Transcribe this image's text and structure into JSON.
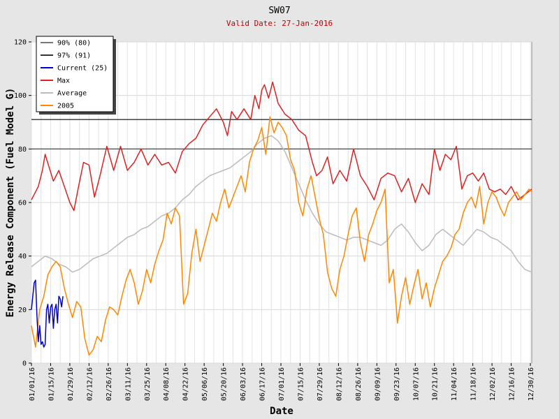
{
  "chart_data": {
    "type": "line",
    "title": "SW07",
    "subtitle": "Valid Date: 27-Jan-2016",
    "xlabel": "Date",
    "ylabel": "Energy Release Component (Fuel Model G)",
    "xlim": [
      0,
      365
    ],
    "ylim": [
      0,
      120
    ],
    "yticks": [
      0,
      20,
      40,
      60,
      80,
      100,
      120
    ],
    "xtick_days": [
      0,
      14,
      28,
      42,
      56,
      70,
      84,
      98,
      112,
      126,
      140,
      154,
      168,
      182,
      196,
      210,
      224,
      238,
      252,
      266,
      280,
      294,
      308,
      322,
      336,
      350,
      364
    ],
    "xtick_labels": [
      "01/01/16",
      "01/15/16",
      "01/29/16",
      "02/12/16",
      "02/26/16",
      "03/11/16",
      "03/25/16",
      "04/08/16",
      "04/22/16",
      "05/06/16",
      "05/20/16",
      "06/03/16",
      "06/17/16",
      "07/01/16",
      "07/15/16",
      "07/29/16",
      "08/12/16",
      "08/26/16",
      "09/09/16",
      "09/23/16",
      "10/07/16",
      "10/21/16",
      "11/04/16",
      "11/18/16",
      "12/02/16",
      "12/16/16",
      "12/30/16"
    ],
    "hlines": [
      {
        "name": "90% (80)",
        "value": 80,
        "color": "#555555"
      },
      {
        "name": "97% (91)",
        "value": 91,
        "color": "#333333"
      }
    ],
    "series": [
      {
        "name": "90% (80)",
        "color": "#777777",
        "kind": "hline",
        "value": 80
      },
      {
        "name": "97% (91)",
        "color": "#333333",
        "kind": "hline",
        "value": 91
      },
      {
        "name": "Current (25)",
        "color": "#0000cc",
        "points": [
          [
            0,
            20
          ],
          [
            2,
            30
          ],
          [
            3,
            31
          ],
          [
            4,
            18
          ],
          [
            5,
            8
          ],
          [
            6,
            14
          ],
          [
            7,
            7
          ],
          [
            8,
            8
          ],
          [
            9,
            6
          ],
          [
            10,
            7
          ],
          [
            11,
            20
          ],
          [
            12,
            22
          ],
          [
            13,
            15
          ],
          [
            14,
            21
          ],
          [
            15,
            22
          ],
          [
            16,
            13
          ],
          [
            17,
            20
          ],
          [
            18,
            22
          ],
          [
            19,
            15
          ],
          [
            20,
            25
          ],
          [
            21,
            24
          ],
          [
            22,
            21
          ],
          [
            23,
            25
          ]
        ]
      },
      {
        "name": "Max",
        "color": "#dd2222",
        "points": [
          [
            0,
            61
          ],
          [
            5,
            66
          ],
          [
            8,
            72
          ],
          [
            10,
            78
          ],
          [
            13,
            73
          ],
          [
            16,
            68
          ],
          [
            20,
            72
          ],
          [
            24,
            66
          ],
          [
            28,
            60
          ],
          [
            31,
            57
          ],
          [
            34,
            65
          ],
          [
            38,
            75
          ],
          [
            42,
            74
          ],
          [
            46,
            62
          ],
          [
            50,
            70
          ],
          [
            55,
            81
          ],
          [
            60,
            72
          ],
          [
            65,
            81
          ],
          [
            70,
            72
          ],
          [
            75,
            75
          ],
          [
            80,
            80
          ],
          [
            85,
            74
          ],
          [
            90,
            78
          ],
          [
            95,
            74
          ],
          [
            100,
            75
          ],
          [
            105,
            71
          ],
          [
            110,
            79
          ],
          [
            115,
            82
          ],
          [
            120,
            84
          ],
          [
            125,
            89
          ],
          [
            130,
            92
          ],
          [
            135,
            95
          ],
          [
            140,
            90
          ],
          [
            143,
            85
          ],
          [
            146,
            94
          ],
          [
            150,
            91
          ],
          [
            155,
            95
          ],
          [
            160,
            91
          ],
          [
            163,
            100
          ],
          [
            166,
            95
          ],
          [
            168,
            102
          ],
          [
            170,
            104
          ],
          [
            173,
            99
          ],
          [
            176,
            105
          ],
          [
            180,
            97
          ],
          [
            185,
            93
          ],
          [
            190,
            91
          ],
          [
            195,
            87
          ],
          [
            200,
            85
          ],
          [
            205,
            75
          ],
          [
            208,
            70
          ],
          [
            212,
            72
          ],
          [
            216,
            77
          ],
          [
            220,
            67
          ],
          [
            225,
            72
          ],
          [
            230,
            68
          ],
          [
            235,
            80
          ],
          [
            240,
            70
          ],
          [
            245,
            66
          ],
          [
            250,
            61
          ],
          [
            255,
            69
          ],
          [
            260,
            71
          ],
          [
            265,
            70
          ],
          [
            270,
            64
          ],
          [
            275,
            69
          ],
          [
            280,
            60
          ],
          [
            285,
            67
          ],
          [
            290,
            63
          ],
          [
            294,
            80
          ],
          [
            298,
            72
          ],
          [
            302,
            78
          ],
          [
            306,
            76
          ],
          [
            310,
            81
          ],
          [
            314,
            65
          ],
          [
            318,
            70
          ],
          [
            322,
            71
          ],
          [
            326,
            68
          ],
          [
            330,
            71
          ],
          [
            334,
            65
          ],
          [
            338,
            64
          ],
          [
            342,
            65
          ],
          [
            346,
            63
          ],
          [
            350,
            66
          ],
          [
            355,
            61
          ],
          [
            360,
            63
          ],
          [
            365,
            65
          ]
        ]
      },
      {
        "name": "Average",
        "color": "#bbbbbb",
        "points": [
          [
            0,
            36
          ],
          [
            5,
            38
          ],
          [
            10,
            40
          ],
          [
            15,
            39
          ],
          [
            20,
            37
          ],
          [
            25,
            36
          ],
          [
            30,
            34
          ],
          [
            35,
            35
          ],
          [
            40,
            37
          ],
          [
            45,
            39
          ],
          [
            50,
            40
          ],
          [
            55,
            41
          ],
          [
            60,
            43
          ],
          [
            65,
            45
          ],
          [
            70,
            47
          ],
          [
            75,
            48
          ],
          [
            80,
            50
          ],
          [
            85,
            51
          ],
          [
            90,
            53
          ],
          [
            95,
            55
          ],
          [
            100,
            56
          ],
          [
            105,
            58
          ],
          [
            110,
            61
          ],
          [
            115,
            63
          ],
          [
            120,
            66
          ],
          [
            125,
            68
          ],
          [
            130,
            70
          ],
          [
            135,
            71
          ],
          [
            140,
            72
          ],
          [
            145,
            73
          ],
          [
            150,
            75
          ],
          [
            155,
            77
          ],
          [
            160,
            79
          ],
          [
            165,
            82
          ],
          [
            170,
            84
          ],
          [
            175,
            85
          ],
          [
            180,
            83
          ],
          [
            185,
            79
          ],
          [
            190,
            73
          ],
          [
            195,
            67
          ],
          [
            200,
            61
          ],
          [
            205,
            56
          ],
          [
            210,
            52
          ],
          [
            215,
            49
          ],
          [
            220,
            48
          ],
          [
            225,
            47
          ],
          [
            230,
            46
          ],
          [
            235,
            47
          ],
          [
            240,
            47
          ],
          [
            245,
            46
          ],
          [
            250,
            45
          ],
          [
            255,
            44
          ],
          [
            260,
            46
          ],
          [
            265,
            50
          ],
          [
            270,
            52
          ],
          [
            275,
            49
          ],
          [
            280,
            45
          ],
          [
            285,
            42
          ],
          [
            290,
            44
          ],
          [
            295,
            48
          ],
          [
            300,
            50
          ],
          [
            305,
            48
          ],
          [
            310,
            46
          ],
          [
            315,
            44
          ],
          [
            320,
            47
          ],
          [
            325,
            50
          ],
          [
            330,
            49
          ],
          [
            335,
            47
          ],
          [
            340,
            46
          ],
          [
            345,
            44
          ],
          [
            350,
            42
          ],
          [
            355,
            38
          ],
          [
            360,
            35
          ],
          [
            365,
            34
          ]
        ]
      },
      {
        "name": "2005",
        "color": "#ff8800",
        "points": [
          [
            0,
            14
          ],
          [
            3,
            6
          ],
          [
            6,
            20
          ],
          [
            9,
            25
          ],
          [
            12,
            33
          ],
          [
            15,
            36
          ],
          [
            18,
            38
          ],
          [
            21,
            36
          ],
          [
            24,
            28
          ],
          [
            27,
            22
          ],
          [
            30,
            17
          ],
          [
            33,
            23
          ],
          [
            36,
            21
          ],
          [
            39,
            9
          ],
          [
            42,
            3
          ],
          [
            45,
            5
          ],
          [
            48,
            10
          ],
          [
            51,
            8
          ],
          [
            54,
            16
          ],
          [
            57,
            21
          ],
          [
            60,
            20
          ],
          [
            63,
            18
          ],
          [
            66,
            25
          ],
          [
            69,
            31
          ],
          [
            72,
            35
          ],
          [
            75,
            30
          ],
          [
            78,
            22
          ],
          [
            81,
            27
          ],
          [
            84,
            35
          ],
          [
            87,
            30
          ],
          [
            90,
            37
          ],
          [
            93,
            42
          ],
          [
            96,
            46
          ],
          [
            99,
            56
          ],
          [
            102,
            52
          ],
          [
            105,
            58
          ],
          [
            108,
            55
          ],
          [
            111,
            22
          ],
          [
            114,
            26
          ],
          [
            117,
            41
          ],
          [
            120,
            50
          ],
          [
            123,
            38
          ],
          [
            126,
            44
          ],
          [
            129,
            50
          ],
          [
            132,
            56
          ],
          [
            135,
            53
          ],
          [
            138,
            60
          ],
          [
            141,
            65
          ],
          [
            144,
            58
          ],
          [
            147,
            62
          ],
          [
            150,
            66
          ],
          [
            153,
            70
          ],
          [
            156,
            64
          ],
          [
            159,
            75
          ],
          [
            162,
            80
          ],
          [
            165,
            83
          ],
          [
            168,
            88
          ],
          [
            171,
            78
          ],
          [
            174,
            92
          ],
          [
            177,
            86
          ],
          [
            180,
            90
          ],
          [
            183,
            88
          ],
          [
            186,
            85
          ],
          [
            189,
            76
          ],
          [
            192,
            72
          ],
          [
            195,
            60
          ],
          [
            198,
            55
          ],
          [
            201,
            65
          ],
          [
            204,
            70
          ],
          [
            207,
            62
          ],
          [
            210,
            54
          ],
          [
            213,
            48
          ],
          [
            216,
            34
          ],
          [
            219,
            28
          ],
          [
            222,
            25
          ],
          [
            225,
            35
          ],
          [
            228,
            40
          ],
          [
            231,
            48
          ],
          [
            234,
            55
          ],
          [
            237,
            58
          ],
          [
            240,
            45
          ],
          [
            243,
            38
          ],
          [
            246,
            48
          ],
          [
            249,
            52
          ],
          [
            252,
            57
          ],
          [
            255,
            60
          ],
          [
            258,
            65
          ],
          [
            261,
            30
          ],
          [
            264,
            35
          ],
          [
            267,
            15
          ],
          [
            270,
            25
          ],
          [
            273,
            32
          ],
          [
            276,
            22
          ],
          [
            279,
            29
          ],
          [
            282,
            35
          ],
          [
            285,
            24
          ],
          [
            288,
            30
          ],
          [
            291,
            21
          ],
          [
            294,
            28
          ],
          [
            297,
            33
          ],
          [
            300,
            38
          ],
          [
            303,
            40
          ],
          [
            306,
            43
          ],
          [
            309,
            48
          ],
          [
            312,
            50
          ],
          [
            315,
            56
          ],
          [
            318,
            60
          ],
          [
            321,
            62
          ],
          [
            324,
            58
          ],
          [
            327,
            66
          ],
          [
            330,
            52
          ],
          [
            333,
            60
          ],
          [
            336,
            64
          ],
          [
            339,
            62
          ],
          [
            342,
            58
          ],
          [
            345,
            55
          ],
          [
            348,
            60
          ],
          [
            351,
            62
          ],
          [
            354,
            64
          ],
          [
            357,
            61
          ],
          [
            360,
            63
          ],
          [
            363,
            65
          ],
          [
            365,
            64
          ]
        ]
      }
    ]
  }
}
